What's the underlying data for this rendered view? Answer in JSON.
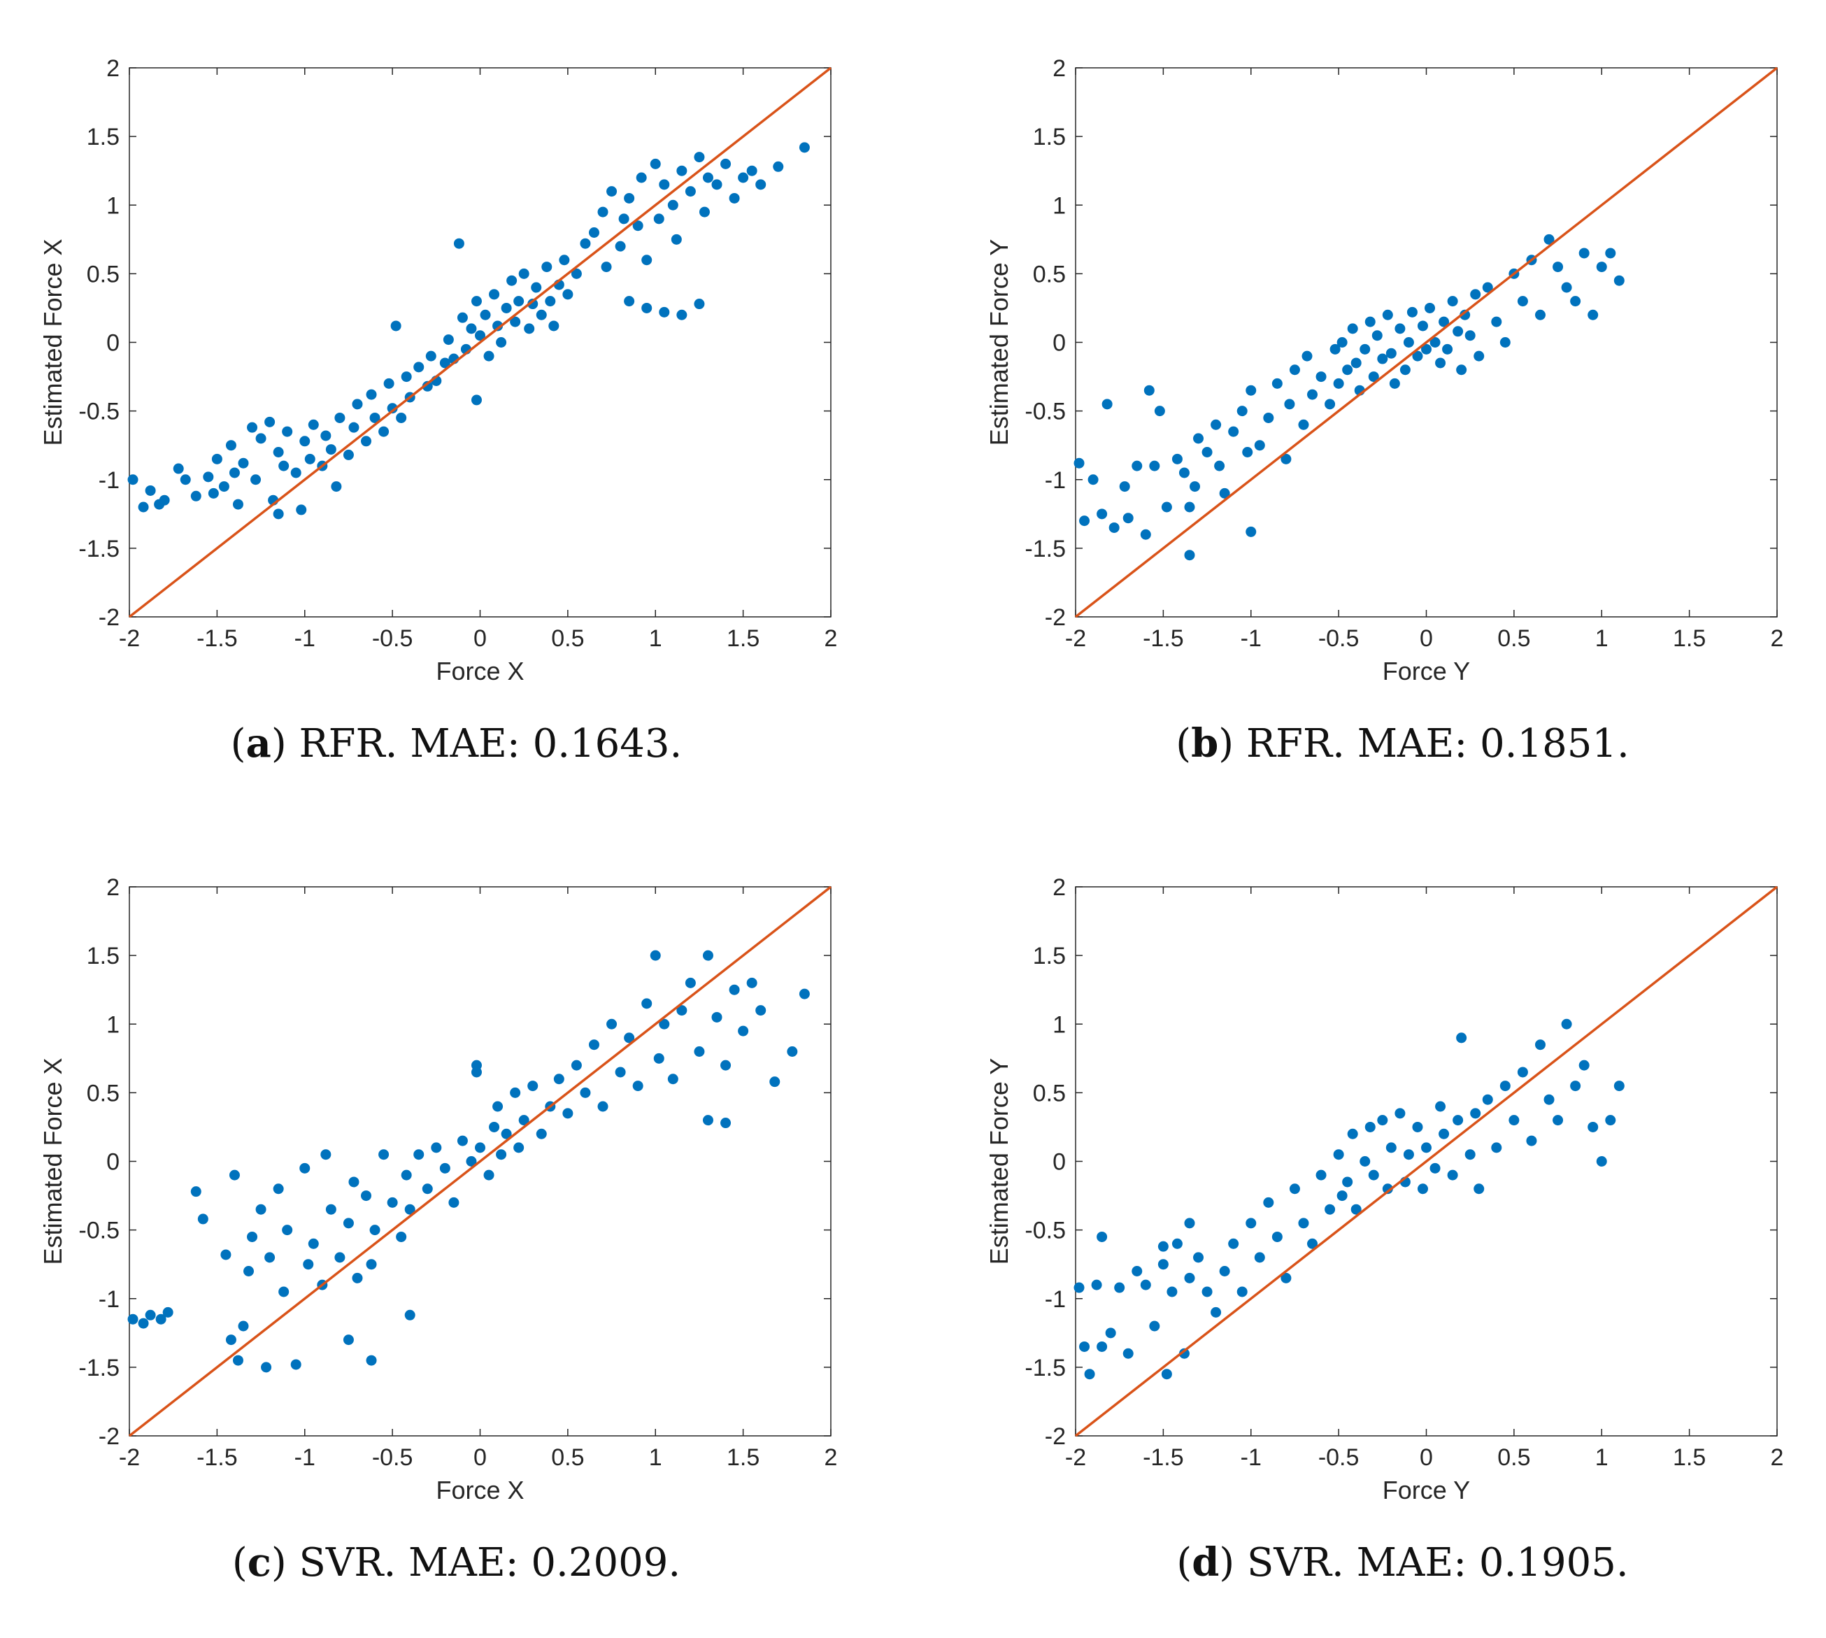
{
  "colors": {
    "points": "#0072BD",
    "line": "#D95319",
    "axis": "#262626"
  },
  "figure": {
    "panels": [
      {
        "caption": {
          "letter": "a",
          "text": "RFR. MAE: 0.1643."
        }
      },
      {
        "caption": {
          "letter": "b",
          "text": "RFR. MAE: 0.1851."
        }
      },
      {
        "caption": {
          "letter": "c",
          "text": "SVR. MAE: 0.2009."
        }
      },
      {
        "caption": {
          "letter": "d",
          "text": "SVR. MAE: 0.1905."
        }
      }
    ]
  },
  "chart_data": [
    {
      "type": "scatter",
      "xlabel": "Force X",
      "ylabel": "Estimated Force X",
      "xlim": [
        -2,
        2
      ],
      "ylim": [
        -2,
        2
      ],
      "xticks": [
        -2,
        -1.5,
        -1,
        -0.5,
        0,
        0.5,
        1,
        1.5,
        2
      ],
      "yticks": [
        -2,
        -1.5,
        -1,
        -0.5,
        0,
        0.5,
        1,
        1.5,
        2
      ],
      "xtick_labels": [
        "-2",
        "-1.5",
        "-1",
        "-0.5",
        "0",
        "0.5",
        "1",
        "1.5",
        "2"
      ],
      "ytick_labels": [
        "-2",
        "-1.5",
        "-1",
        "-0.5",
        "0",
        "0.5",
        "1",
        "1.5",
        "2"
      ],
      "grid": false,
      "reference_line": "y = x",
      "series": [
        {
          "x": [
            -1.98,
            -1.92,
            -1.88,
            -1.83,
            -1.8,
            -1.72,
            -1.68,
            -1.62,
            -1.55,
            -1.52,
            -1.5,
            -1.46,
            -1.42,
            -1.4,
            -1.38,
            -1.35,
            -1.3,
            -1.28,
            -1.25,
            -1.2,
            -1.18,
            -1.15,
            -1.12,
            -1.1,
            -1.05,
            -1.02,
            -1.0,
            -0.97,
            -0.95,
            -0.9,
            -0.88,
            -0.85,
            -0.82,
            -0.8,
            -0.75,
            -0.72,
            -0.7,
            -0.65,
            -0.62,
            -0.6,
            -0.55,
            -0.52,
            -0.5,
            -0.45,
            -0.42,
            -0.4,
            -0.35,
            -0.3,
            -0.28,
            -0.25,
            -0.2,
            -0.18,
            -0.15,
            -0.1,
            -0.08,
            -0.05,
            -0.02,
            0.0,
            0.03,
            0.05,
            0.08,
            0.1,
            0.12,
            0.15,
            0.18,
            0.2,
            0.22,
            0.25,
            0.28,
            0.3,
            0.32,
            0.35,
            0.38,
            0.4,
            0.42,
            0.45,
            0.48,
            0.5,
            0.55,
            0.6,
            0.65,
            0.7,
            0.72,
            0.75,
            0.8,
            0.82,
            0.85,
            0.9,
            0.92,
            0.95,
            1.0,
            1.02,
            1.05,
            1.1,
            1.12,
            1.15,
            1.2,
            1.25,
            1.28,
            1.3,
            1.35,
            1.4,
            1.45,
            1.5,
            1.55,
            1.6,
            1.7,
            1.85,
            0.85,
            0.95,
            1.05,
            1.15,
            1.25,
            -0.12,
            -0.48,
            -1.15,
            -0.02
          ],
          "y": [
            -1.0,
            -1.2,
            -1.08,
            -1.18,
            -1.15,
            -0.92,
            -1.0,
            -1.12,
            -0.98,
            -1.1,
            -0.85,
            -1.05,
            -0.75,
            -0.95,
            -1.18,
            -0.88,
            -0.62,
            -1.0,
            -0.7,
            -0.58,
            -1.15,
            -0.8,
            -0.9,
            -0.65,
            -0.95,
            -1.22,
            -0.72,
            -0.85,
            -0.6,
            -0.9,
            -0.68,
            -0.78,
            -1.05,
            -0.55,
            -0.82,
            -0.62,
            -0.45,
            -0.72,
            -0.38,
            -0.55,
            -0.65,
            -0.3,
            -0.48,
            -0.55,
            -0.25,
            -0.4,
            -0.18,
            -0.32,
            -0.1,
            -0.28,
            -0.15,
            0.02,
            -0.12,
            0.18,
            -0.05,
            0.1,
            0.3,
            0.05,
            0.2,
            -0.1,
            0.35,
            0.12,
            0.0,
            0.25,
            0.45,
            0.15,
            0.3,
            0.5,
            0.1,
            0.28,
            0.4,
            0.2,
            0.55,
            0.3,
            0.12,
            0.42,
            0.6,
            0.35,
            0.5,
            0.72,
            0.8,
            0.95,
            0.55,
            1.1,
            0.7,
            0.9,
            1.05,
            0.85,
            1.2,
            0.6,
            1.3,
            0.9,
            1.15,
            1.0,
            0.75,
            1.25,
            1.1,
            1.35,
            0.95,
            1.2,
            1.15,
            1.3,
            1.05,
            1.2,
            1.25,
            1.15,
            1.28,
            1.42,
            0.3,
            0.25,
            0.22,
            0.2,
            0.28,
            0.72,
            0.12,
            -1.25,
            -0.42
          ]
        }
      ]
    },
    {
      "type": "scatter",
      "xlabel": "Force Y",
      "ylabel": "Estimated Force Y",
      "xlim": [
        -2,
        2
      ],
      "ylim": [
        -2,
        2
      ],
      "xticks": [
        -2,
        -1.5,
        -1,
        -0.5,
        0,
        0.5,
        1,
        1.5,
        2
      ],
      "yticks": [
        -2,
        -1.5,
        -1,
        -0.5,
        0,
        0.5,
        1,
        1.5,
        2
      ],
      "xtick_labels": [
        "-2",
        "-1.5",
        "-1",
        "-0.5",
        "0",
        "0.5",
        "1",
        "1.5",
        "2"
      ],
      "ytick_labels": [
        "-2",
        "-1.5",
        "-1",
        "-0.5",
        "0",
        "0.5",
        "1",
        "1.5",
        "2"
      ],
      "grid": false,
      "reference_line": "y = x",
      "series": [
        {
          "x": [
            -1.98,
            -1.95,
            -1.9,
            -1.85,
            -1.82,
            -1.78,
            -1.72,
            -1.7,
            -1.65,
            -1.6,
            -1.58,
            -1.55,
            -1.52,
            -1.48,
            -1.42,
            -1.38,
            -1.35,
            -1.32,
            -1.3,
            -1.25,
            -1.2,
            -1.18,
            -1.15,
            -1.1,
            -1.05,
            -1.02,
            -1.0,
            -0.95,
            -0.9,
            -0.85,
            -0.8,
            -0.78,
            -0.75,
            -0.7,
            -0.68,
            -0.65,
            -0.6,
            -0.55,
            -0.52,
            -0.5,
            -0.48,
            -0.45,
            -0.42,
            -0.4,
            -0.38,
            -0.35,
            -0.32,
            -0.3,
            -0.28,
            -0.25,
            -0.22,
            -0.2,
            -0.18,
            -0.15,
            -0.12,
            -0.1,
            -0.08,
            -0.05,
            -0.02,
            0.0,
            0.02,
            0.05,
            0.08,
            0.1,
            0.12,
            0.15,
            0.18,
            0.2,
            0.22,
            0.25,
            0.28,
            0.3,
            0.35,
            0.4,
            0.45,
            0.5,
            0.55,
            0.6,
            0.65,
            0.7,
            0.75,
            0.8,
            0.85,
            0.9,
            0.95,
            1.0,
            1.05,
            1.1,
            -1.35,
            -1.0
          ],
          "y": [
            -0.88,
            -1.3,
            -1.0,
            -1.25,
            -0.45,
            -1.35,
            -1.05,
            -1.28,
            -0.9,
            -1.4,
            -0.35,
            -0.9,
            -0.5,
            -1.2,
            -0.85,
            -0.95,
            -1.2,
            -1.05,
            -0.7,
            -0.8,
            -0.6,
            -0.9,
            -1.1,
            -0.65,
            -0.5,
            -0.8,
            -0.35,
            -0.75,
            -0.55,
            -0.3,
            -0.85,
            -0.45,
            -0.2,
            -0.6,
            -0.1,
            -0.38,
            -0.25,
            -0.45,
            -0.05,
            -0.3,
            0.0,
            -0.2,
            0.1,
            -0.15,
            -0.35,
            -0.05,
            0.15,
            -0.25,
            0.05,
            -0.12,
            0.2,
            -0.08,
            -0.3,
            0.1,
            -0.2,
            0.0,
            0.22,
            -0.1,
            0.12,
            -0.05,
            0.25,
            0.0,
            -0.15,
            0.15,
            -0.05,
            0.3,
            0.08,
            -0.2,
            0.2,
            0.05,
            0.35,
            -0.1,
            0.4,
            0.15,
            0.0,
            0.5,
            0.3,
            0.6,
            0.2,
            0.75,
            0.55,
            0.4,
            0.3,
            0.65,
            0.2,
            0.55,
            0.65,
            0.45,
            -1.55,
            -1.38
          ]
        }
      ]
    },
    {
      "type": "scatter",
      "xlabel": "Force X",
      "ylabel": "Estimated Force X",
      "xlim": [
        -2,
        2
      ],
      "ylim": [
        -2,
        2
      ],
      "xticks": [
        -2,
        -1.5,
        -1,
        -0.5,
        0,
        0.5,
        1,
        1.5,
        2
      ],
      "yticks": [
        -2,
        -1.5,
        -1,
        -0.5,
        0,
        0.5,
        1,
        1.5,
        2
      ],
      "xtick_labels": [
        "-2",
        "-1.5",
        "-1",
        "-0.5",
        "0",
        "0.5",
        "1",
        "1.5",
        "2"
      ],
      "ytick_labels": [
        "-2",
        "-1.5",
        "-1",
        "-0.5",
        "0",
        "0.5",
        "1",
        "1.5",
        "2"
      ],
      "grid": false,
      "reference_line": "y = x",
      "series": [
        {
          "x": [
            -1.98,
            -1.92,
            -1.88,
            -1.82,
            -1.78,
            -1.62,
            -1.58,
            -1.45,
            -1.42,
            -1.4,
            -1.38,
            -1.35,
            -1.32,
            -1.3,
            -1.25,
            -1.22,
            -1.2,
            -1.15,
            -1.12,
            -1.1,
            -1.05,
            -1.0,
            -0.98,
            -0.95,
            -0.9,
            -0.88,
            -0.85,
            -0.8,
            -0.75,
            -0.72,
            -0.7,
            -0.65,
            -0.62,
            -0.6,
            -0.55,
            -0.5,
            -0.45,
            -0.42,
            -0.4,
            -0.35,
            -0.3,
            -0.25,
            -0.2,
            -0.15,
            -0.1,
            -0.05,
            -0.02,
            0.0,
            0.05,
            0.08,
            0.1,
            0.12,
            0.15,
            0.2,
            0.22,
            0.25,
            0.3,
            0.35,
            0.4,
            0.45,
            0.5,
            0.55,
            0.6,
            0.65,
            0.7,
            0.75,
            0.8,
            0.85,
            0.9,
            0.95,
            1.0,
            1.02,
            1.05,
            1.1,
            1.15,
            1.2,
            1.25,
            1.3,
            1.35,
            1.4,
            1.45,
            1.5,
            1.55,
            1.6,
            1.68,
            1.78,
            1.85,
            1.3,
            1.4,
            -0.62,
            -0.75,
            -0.4,
            -0.02
          ],
          "y": [
            -1.15,
            -1.18,
            -1.12,
            -1.15,
            -1.1,
            -0.22,
            -0.42,
            -0.68,
            -1.3,
            -0.1,
            -1.45,
            -1.2,
            -0.8,
            -0.55,
            -0.35,
            -1.5,
            -0.7,
            -0.2,
            -0.95,
            -0.5,
            -1.48,
            -0.05,
            -0.75,
            -0.6,
            -0.9,
            0.05,
            -0.35,
            -0.7,
            -0.45,
            -0.15,
            -0.85,
            -0.25,
            -1.45,
            -0.5,
            0.05,
            -0.3,
            -0.55,
            -0.1,
            -0.35,
            0.05,
            -0.2,
            0.1,
            -0.05,
            -0.3,
            0.15,
            0.0,
            0.65,
            0.1,
            -0.1,
            0.25,
            0.4,
            0.05,
            0.2,
            0.5,
            0.1,
            0.3,
            0.55,
            0.2,
            0.4,
            0.6,
            0.35,
            0.7,
            0.5,
            0.85,
            0.4,
            1.0,
            0.65,
            0.9,
            0.55,
            1.15,
            1.5,
            0.75,
            1.0,
            0.6,
            1.1,
            1.3,
            0.8,
            1.5,
            1.05,
            0.7,
            1.25,
            0.95,
            1.3,
            1.1,
            0.58,
            0.8,
            1.22,
            0.3,
            0.28,
            -0.75,
            -1.3,
            -1.12,
            0.7
          ]
        }
      ]
    },
    {
      "type": "scatter",
      "xlabel": "Force Y",
      "ylabel": "Estimated Force Y",
      "xlim": [
        -2,
        2
      ],
      "ylim": [
        -2,
        2
      ],
      "xticks": [
        -2,
        -1.5,
        -1,
        -0.5,
        0,
        0.5,
        1,
        1.5,
        2
      ],
      "yticks": [
        -2,
        -1.5,
        -1,
        -0.5,
        0,
        0.5,
        1,
        1.5,
        2
      ],
      "xtick_labels": [
        "-2",
        "-1.5",
        "-1",
        "-0.5",
        "0",
        "0.5",
        "1",
        "1.5",
        "2"
      ],
      "ytick_labels": [
        "-2",
        "-1.5",
        "-1",
        "-0.5",
        "0",
        "0.5",
        "1",
        "1.5",
        "2"
      ],
      "grid": false,
      "reference_line": "y = x",
      "series": [
        {
          "x": [
            -1.98,
            -1.95,
            -1.92,
            -1.88,
            -1.85,
            -1.8,
            -1.75,
            -1.7,
            -1.65,
            -1.6,
            -1.55,
            -1.5,
            -1.48,
            -1.45,
            -1.42,
            -1.38,
            -1.35,
            -1.3,
            -1.25,
            -1.2,
            -1.15,
            -1.1,
            -1.05,
            -1.0,
            -0.95,
            -0.9,
            -0.85,
            -0.8,
            -0.75,
            -0.7,
            -0.65,
            -0.6,
            -0.55,
            -0.5,
            -0.48,
            -0.45,
            -0.42,
            -0.4,
            -0.35,
            -0.32,
            -0.3,
            -0.25,
            -0.22,
            -0.2,
            -0.15,
            -0.12,
            -0.1,
            -0.05,
            -0.02,
            0.0,
            0.05,
            0.08,
            0.1,
            0.15,
            0.18,
            0.2,
            0.25,
            0.28,
            0.3,
            0.35,
            0.4,
            0.45,
            0.5,
            0.55,
            0.6,
            0.65,
            0.7,
            0.75,
            0.8,
            0.85,
            0.9,
            0.95,
            1.0,
            1.05,
            1.1,
            -1.85,
            -1.5,
            -1.35
          ],
          "y": [
            -0.92,
            -1.35,
            -1.55,
            -0.9,
            -0.55,
            -1.25,
            -0.92,
            -1.4,
            -0.8,
            -0.9,
            -1.2,
            -0.75,
            -1.55,
            -0.95,
            -0.6,
            -1.4,
            -0.85,
            -0.7,
            -0.95,
            -1.1,
            -0.8,
            -0.6,
            -0.95,
            -0.45,
            -0.7,
            -0.3,
            -0.55,
            -0.85,
            -0.2,
            -0.45,
            -0.6,
            -0.1,
            -0.35,
            0.05,
            -0.25,
            -0.15,
            0.2,
            -0.35,
            0.0,
            0.25,
            -0.1,
            0.3,
            -0.2,
            0.1,
            0.35,
            -0.15,
            0.05,
            0.25,
            -0.2,
            0.1,
            -0.05,
            0.4,
            0.2,
            -0.1,
            0.3,
            0.9,
            0.05,
            0.35,
            -0.2,
            0.45,
            0.1,
            0.55,
            0.3,
            0.65,
            0.15,
            0.85,
            0.45,
            0.3,
            1.0,
            0.55,
            0.7,
            0.25,
            0.0,
            0.3,
            0.55,
            -1.35,
            -0.62,
            -0.45
          ]
        }
      ]
    }
  ]
}
